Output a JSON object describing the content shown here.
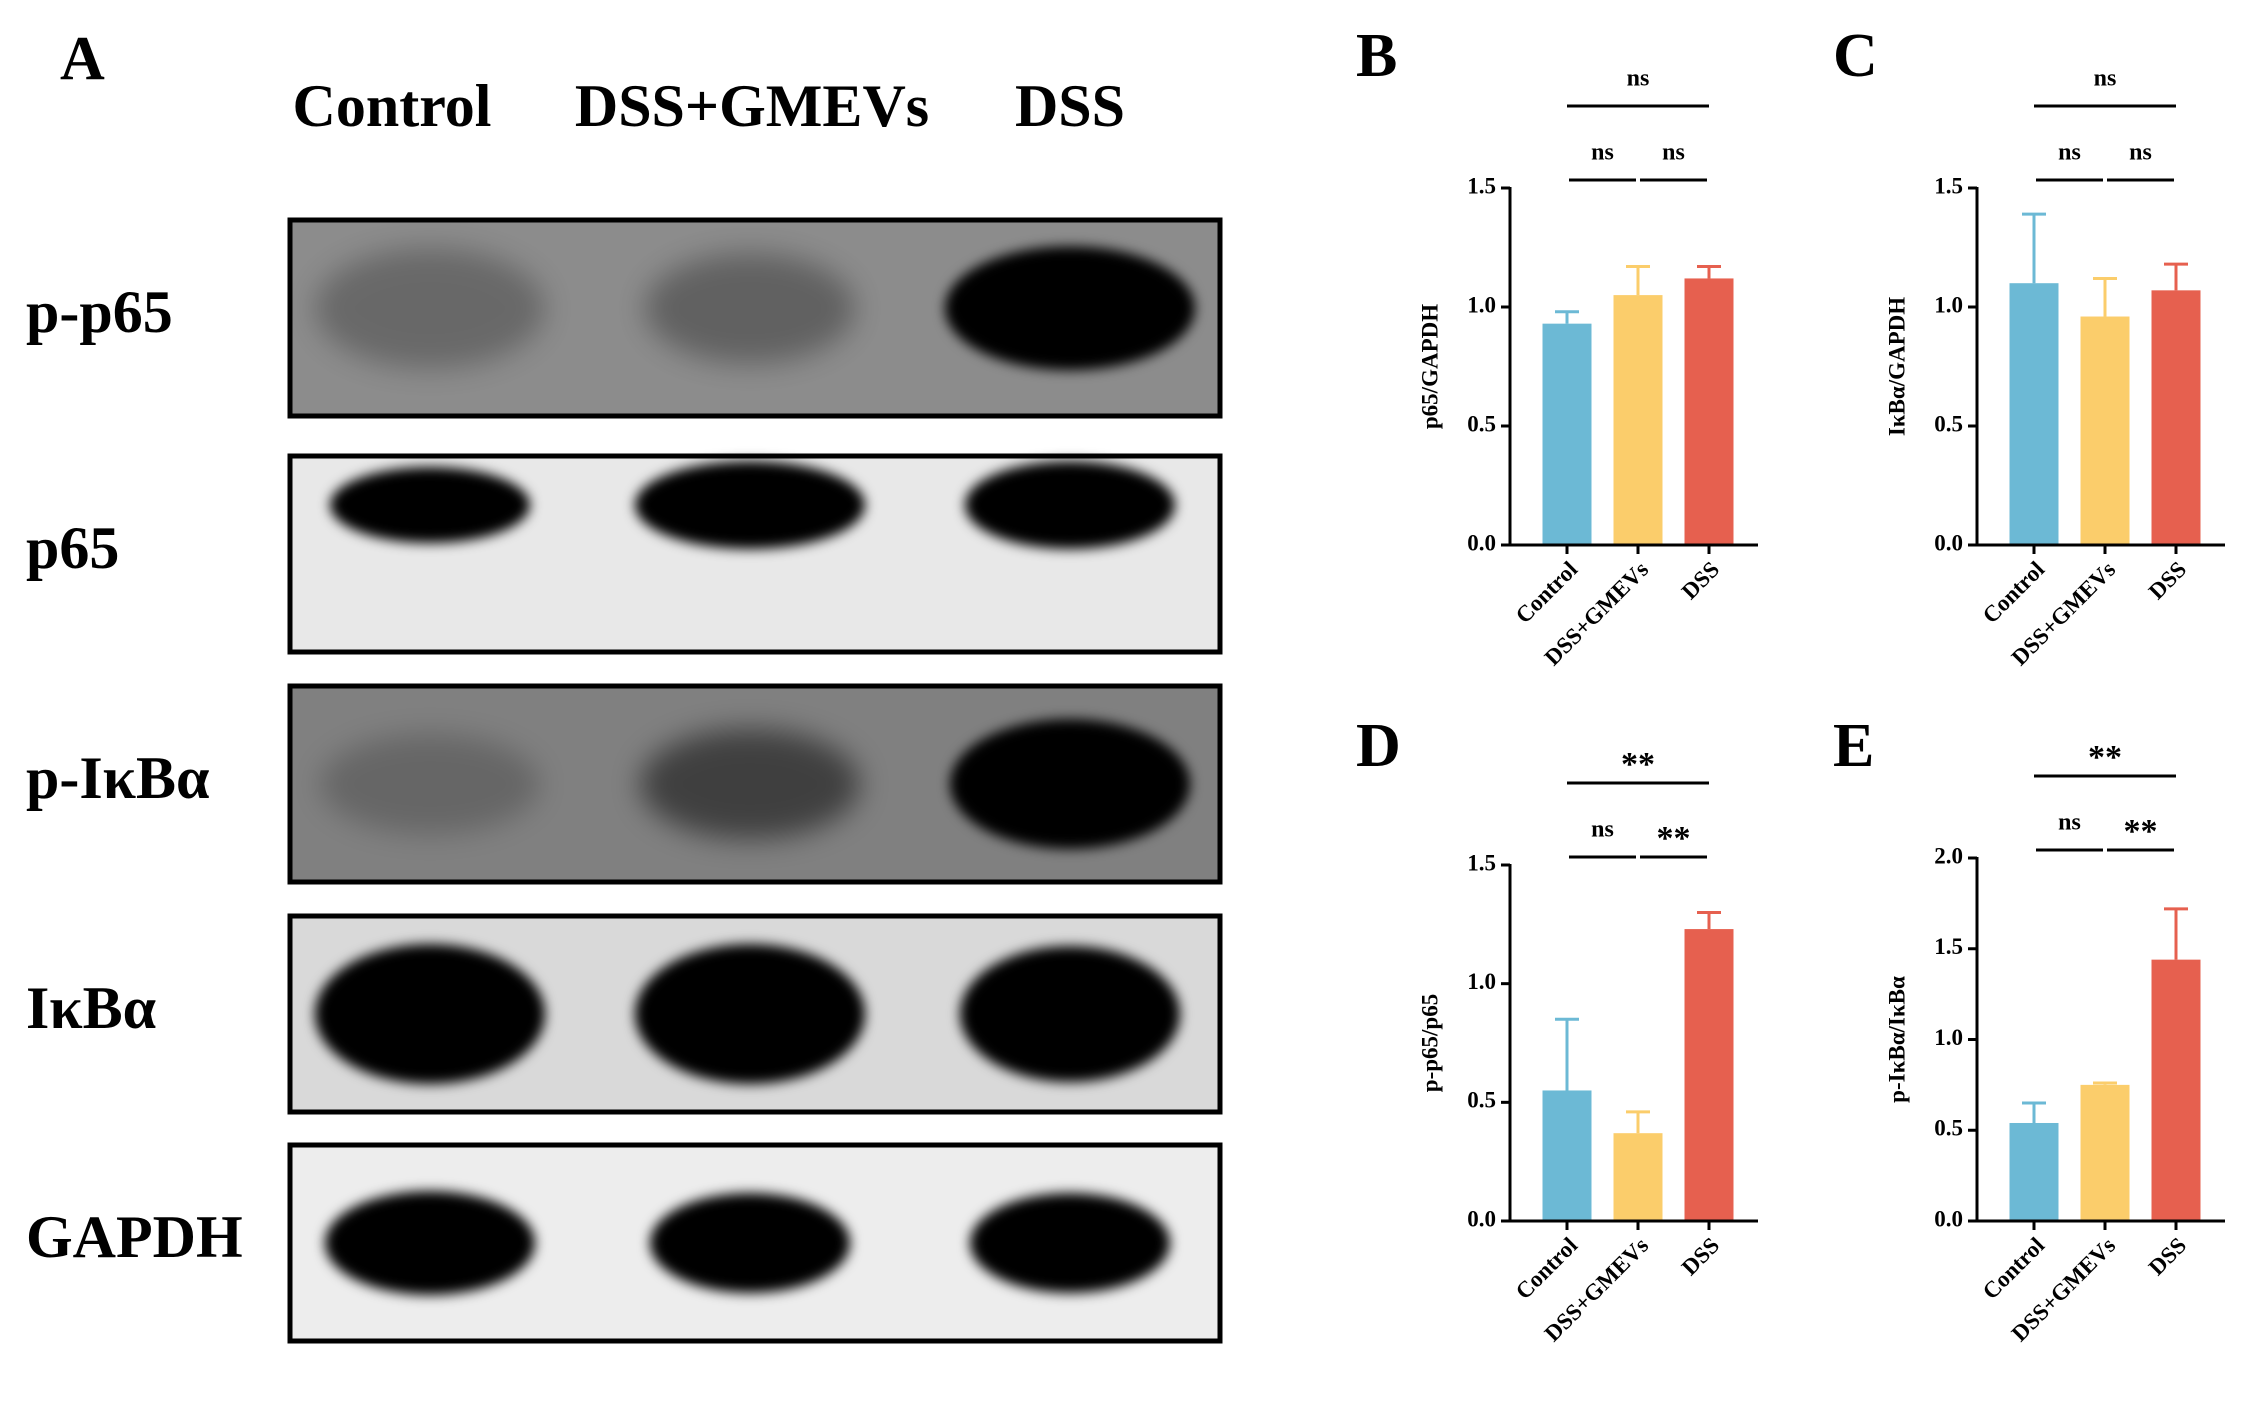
{
  "blot": {
    "label": "A",
    "lanes": [
      "Control",
      "DSS+GMEVs",
      "DSS"
    ],
    "proteins": [
      "p-p65",
      "p65",
      "p-IκBα",
      "IκBα",
      "GAPDH"
    ]
  },
  "chart_data": [
    {
      "type": "bar",
      "panel": "B",
      "ylabel": "p65/GAPDH",
      "categories": [
        "Control",
        "DSS+GMEVs",
        "DSS"
      ],
      "values": [
        0.93,
        1.05,
        1.12
      ],
      "errors": [
        0.05,
        0.12,
        0.05
      ],
      "colors": [
        "#6cb9d5",
        "#fbcd6b",
        "#e6604f"
      ],
      "ylim": [
        0,
        1.5
      ],
      "yticks": [
        {
          "value": 0,
          "label": "0.0"
        },
        0.5,
        {
          "value": 1,
          "label": "1.0"
        },
        1.5
      ],
      "annotations": [
        {
          "text": "ns",
          "from": 0,
          "to": 1
        },
        {
          "text": "ns",
          "from": 1,
          "to": 2
        },
        {
          "text": "ns",
          "from": 0,
          "to": 2
        }
      ]
    },
    {
      "type": "bar",
      "panel": "C",
      "ylabel": "IκBα/GAPDH",
      "categories": [
        "Control",
        "DSS+GMEVs",
        "DSS"
      ],
      "values": [
        1.1,
        0.96,
        1.07
      ],
      "errors": [
        0.29,
        0.16,
        0.11
      ],
      "colors": [
        "#6cb9d5",
        "#fbcd6b",
        "#e6604f"
      ],
      "ylim": [
        0,
        1.5
      ],
      "yticks": [
        {
          "value": 0,
          "label": "0.0"
        },
        0.5,
        {
          "value": 1,
          "label": "1.0"
        },
        1.5
      ],
      "annotations": [
        {
          "text": "ns",
          "from": 0,
          "to": 1
        },
        {
          "text": "ns",
          "from": 1,
          "to": 2
        },
        {
          "text": "ns",
          "from": 0,
          "to": 2
        }
      ]
    },
    {
      "type": "bar",
      "panel": "D",
      "ylabel": "p-p65/p65",
      "categories": [
        "Control",
        "DSS+GMEVs",
        "DSS"
      ],
      "values": [
        0.55,
        0.37,
        1.23
      ],
      "errors": [
        0.3,
        0.09,
        0.07
      ],
      "colors": [
        "#6cb9d5",
        "#fbcd6b",
        "#e6604f"
      ],
      "ylim": [
        0,
        1.5
      ],
      "yticks": [
        {
          "value": 0,
          "label": "0.0"
        },
        0.5,
        {
          "value": 1,
          "label": "1.0"
        },
        1.5
      ],
      "annotations": [
        {
          "text": "ns",
          "from": 0,
          "to": 1
        },
        {
          "text": "**",
          "from": 1,
          "to": 2
        },
        {
          "text": "**",
          "from": 0,
          "to": 2
        }
      ]
    },
    {
      "type": "bar",
      "panel": "E",
      "ylabel": "p-IκBα/IκBα",
      "categories": [
        "Control",
        "DSS+GMEVs",
        "DSS"
      ],
      "values": [
        0.54,
        0.75,
        1.44
      ],
      "errors": [
        0.11,
        0.01,
        0.28
      ],
      "colors": [
        "#6cb9d5",
        "#fbcd6b",
        "#e6604f"
      ],
      "ylim": [
        0,
        2
      ],
      "yticks": [
        {
          "value": 0,
          "label": "0.0"
        },
        0.5,
        {
          "value": 1,
          "label": "1.0"
        },
        1.5,
        {
          "value": 2,
          "label": "2.0"
        }
      ],
      "annotations": [
        {
          "text": "ns",
          "from": 0,
          "to": 1
        },
        {
          "text": "**",
          "from": 1,
          "to": 2
        },
        {
          "text": "**",
          "from": 0,
          "to": 2
        }
      ]
    }
  ]
}
